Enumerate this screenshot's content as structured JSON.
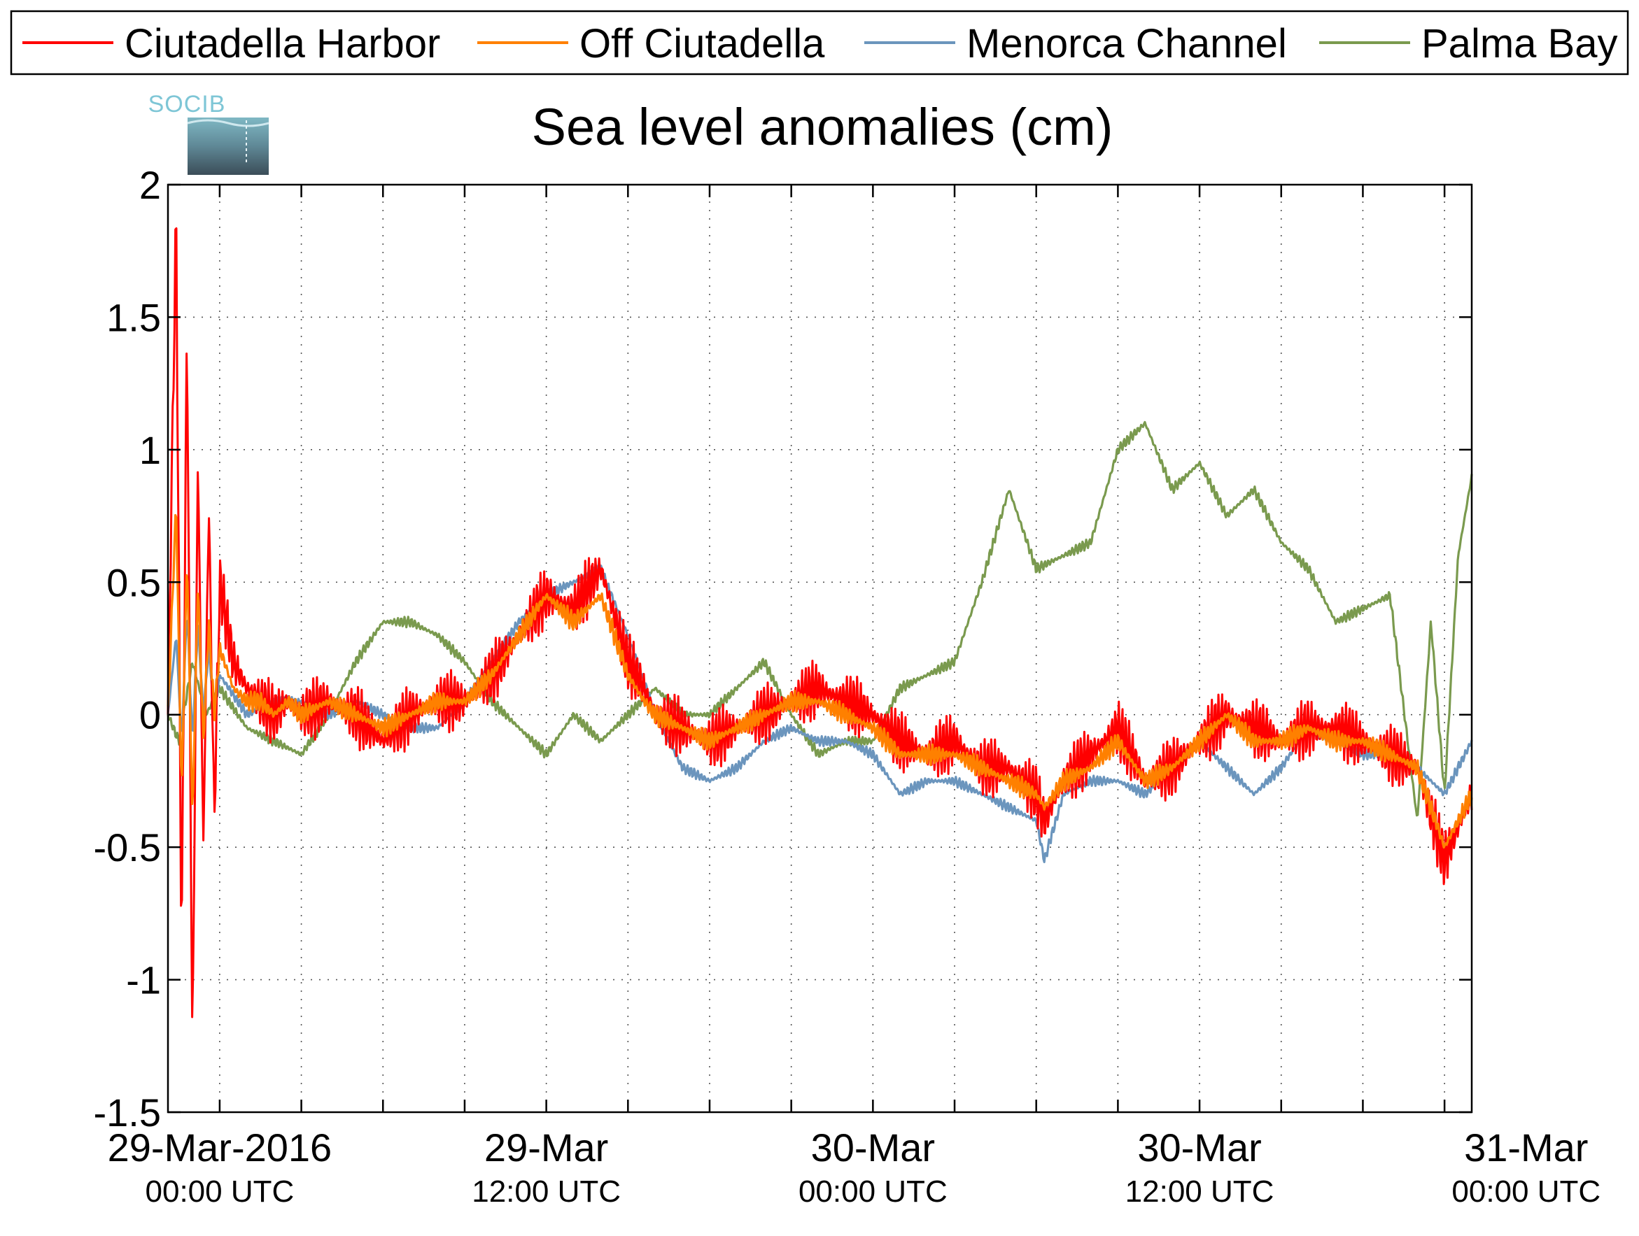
{
  "chart_data": {
    "type": "line",
    "title": "Sea level anomalies (cm)",
    "logo_text": "SOCIB",
    "xlabel": "",
    "ylabel": "",
    "ylim": [
      -1.5,
      2
    ],
    "yticks": [
      {
        "value": -1.5,
        "label": "-1.5"
      },
      {
        "value": -1,
        "label": "-1"
      },
      {
        "value": -0.5,
        "label": "-0.5"
      },
      {
        "value": 0,
        "label": "0"
      },
      {
        "value": 0.5,
        "label": "0.5"
      },
      {
        "value": 1,
        "label": "1"
      },
      {
        "value": 1.5,
        "label": "1.5"
      },
      {
        "value": 2,
        "label": "2"
      }
    ],
    "xlim_hours": [
      -1.9,
      46
    ],
    "xticks_hours": [
      0,
      3,
      6,
      9,
      12,
      15,
      18,
      21,
      24,
      27,
      30,
      33,
      36,
      39,
      42,
      45
    ],
    "xtick_labels": [
      {
        "hour": 0,
        "line1": "29-Mar-2016",
        "line2": "00:00 UTC"
      },
      {
        "hour": 12,
        "line1": "29-Mar",
        "line2": "12:00 UTC"
      },
      {
        "hour": 24,
        "line1": "30-Mar",
        "line2": "00:00 UTC"
      },
      {
        "hour": 36,
        "line1": "30-Mar",
        "line2": "12:00 UTC"
      },
      {
        "hour": 48,
        "line1": "31-Mar",
        "line2": "00:00 UTC"
      }
    ],
    "grid": true,
    "legend_position": "top",
    "series": [
      {
        "name": "Ciutadella Harbor",
        "color": "#ff0000",
        "oscillation": 0.12,
        "x": [
          -1.9,
          -1.6,
          -1.4,
          -1.2,
          -1.0,
          -0.8,
          -0.6,
          -0.4,
          -0.2,
          0,
          0.5,
          1,
          1.5,
          2,
          2.5,
          3,
          4,
          5,
          6,
          7,
          8,
          9,
          10,
          11,
          12,
          13,
          14,
          15,
          15.6,
          16,
          17,
          18,
          19,
          20,
          21,
          22,
          23,
          24,
          25,
          26,
          27,
          28,
          29,
          30,
          30.3,
          31,
          32,
          33,
          34,
          35,
          36,
          37,
          38,
          39,
          40,
          41,
          42,
          43,
          44,
          45,
          46
        ],
        "y": [
          0.0,
          1.9,
          -0.9,
          1.5,
          -1.3,
          1.0,
          -0.5,
          0.8,
          -0.4,
          0.5,
          0.2,
          0.1,
          0.05,
          0.0,
          0.05,
          0.0,
          0.05,
          0.0,
          -0.1,
          0.0,
          0.05,
          0.05,
          0.15,
          0.3,
          0.45,
          0.4,
          0.55,
          0.2,
          0.1,
          0.0,
          -0.05,
          -0.1,
          -0.05,
          0.0,
          0.05,
          0.1,
          0.05,
          0.0,
          -0.1,
          -0.15,
          -0.1,
          -0.2,
          -0.2,
          -0.3,
          -0.4,
          -0.25,
          -0.15,
          -0.05,
          -0.25,
          -0.2,
          -0.1,
          0.0,
          -0.05,
          -0.1,
          -0.05,
          -0.05,
          -0.1,
          -0.15,
          -0.2,
          -0.55,
          -0.3
        ]
      },
      {
        "name": "Off Ciutadella",
        "color": "#ff8000",
        "oscillation": 0.04,
        "x": [
          -1.9,
          -1.6,
          -1.4,
          -1.2,
          -1.0,
          -0.8,
          -0.6,
          -0.4,
          -0.2,
          0,
          0.5,
          1,
          1.5,
          2,
          2.5,
          3,
          4,
          5,
          6,
          7,
          8,
          9,
          10,
          11,
          12,
          13,
          14,
          15,
          15.6,
          16,
          17,
          18,
          19,
          20,
          21,
          22,
          23,
          24,
          25,
          26,
          27,
          28,
          29,
          30,
          30.3,
          31,
          32,
          33,
          34,
          35,
          36,
          37,
          38,
          39,
          40,
          41,
          42,
          43,
          44,
          45,
          46
        ],
        "y": [
          0.0,
          0.8,
          -0.3,
          0.6,
          -0.4,
          0.5,
          -0.1,
          0.35,
          0.0,
          0.25,
          0.1,
          0.05,
          0.05,
          0.0,
          0.05,
          0.0,
          0.05,
          0.0,
          -0.05,
          0.0,
          0.05,
          0.05,
          0.15,
          0.3,
          0.45,
          0.35,
          0.45,
          0.15,
          0.05,
          0.0,
          -0.05,
          -0.1,
          -0.05,
          0.0,
          0.05,
          0.05,
          0.0,
          -0.05,
          -0.15,
          -0.15,
          -0.15,
          -0.2,
          -0.25,
          -0.3,
          -0.35,
          -0.25,
          -0.2,
          -0.1,
          -0.25,
          -0.2,
          -0.1,
          0.0,
          -0.1,
          -0.1,
          -0.05,
          -0.1,
          -0.1,
          -0.15,
          -0.2,
          -0.5,
          -0.3
        ]
      },
      {
        "name": "Menorca Channel",
        "color": "#6b95bd",
        "oscillation": 0.02,
        "x": [
          -1.9,
          -1.6,
          -1.4,
          -1.2,
          -1.0,
          -0.8,
          -0.6,
          -0.4,
          -0.2,
          0,
          1,
          2,
          3,
          4,
          5,
          6,
          7,
          8,
          9,
          10,
          11,
          12,
          13,
          14,
          15,
          16,
          17,
          18,
          19,
          20,
          21,
          22,
          23,
          24,
          25,
          26,
          27,
          28,
          29,
          30,
          30.3,
          31,
          32,
          33,
          34,
          35,
          36,
          37,
          38,
          39,
          40,
          41,
          42,
          43,
          44,
          45,
          46
        ],
        "y": [
          0.0,
          0.3,
          -0.1,
          0.4,
          -0.1,
          0.35,
          0.0,
          0.25,
          0.0,
          0.15,
          0.0,
          0.05,
          0.05,
          0.0,
          0.05,
          0.0,
          -0.05,
          -0.05,
          0.05,
          0.2,
          0.35,
          0.45,
          0.5,
          0.55,
          0.3,
          0.0,
          -0.2,
          -0.25,
          -0.2,
          -0.1,
          -0.05,
          -0.1,
          -0.1,
          -0.15,
          -0.3,
          -0.25,
          -0.25,
          -0.3,
          -0.35,
          -0.4,
          -0.55,
          -0.3,
          -0.25,
          -0.25,
          -0.3,
          -0.2,
          -0.1,
          -0.2,
          -0.3,
          -0.2,
          -0.05,
          -0.1,
          -0.15,
          -0.15,
          -0.2,
          -0.3,
          -0.1
        ]
      },
      {
        "name": "Palma Bay",
        "color": "#7a9a4e",
        "oscillation": 0.02,
        "x": [
          -1.9,
          -1.5,
          -1.0,
          -0.5,
          0,
          1,
          2,
          3,
          4,
          5,
          6,
          7,
          8,
          9,
          10,
          11,
          12,
          13,
          14,
          15,
          16,
          17,
          18,
          19,
          20,
          21,
          22,
          23,
          24,
          25,
          26,
          27,
          28,
          29,
          30,
          31,
          32,
          33,
          34,
          35,
          36,
          37,
          38,
          39,
          40,
          41,
          42,
          43,
          44,
          44.5,
          45,
          45.5,
          46
        ],
        "y": [
          0.0,
          -0.1,
          0.2,
          0.0,
          0.1,
          -0.05,
          -0.1,
          -0.15,
          0.0,
          0.2,
          0.35,
          0.35,
          0.3,
          0.2,
          0.05,
          -0.05,
          -0.15,
          0.0,
          -0.1,
          0.0,
          0.1,
          0.0,
          0.0,
          0.1,
          0.2,
          0.0,
          -0.15,
          -0.1,
          -0.1,
          0.1,
          0.15,
          0.2,
          0.5,
          0.85,
          0.55,
          0.6,
          0.65,
          1.0,
          1.1,
          0.85,
          0.95,
          0.75,
          0.85,
          0.65,
          0.55,
          0.35,
          0.4,
          0.45,
          -0.4,
          0.35,
          -0.3,
          0.6,
          0.9
        ]
      }
    ]
  }
}
